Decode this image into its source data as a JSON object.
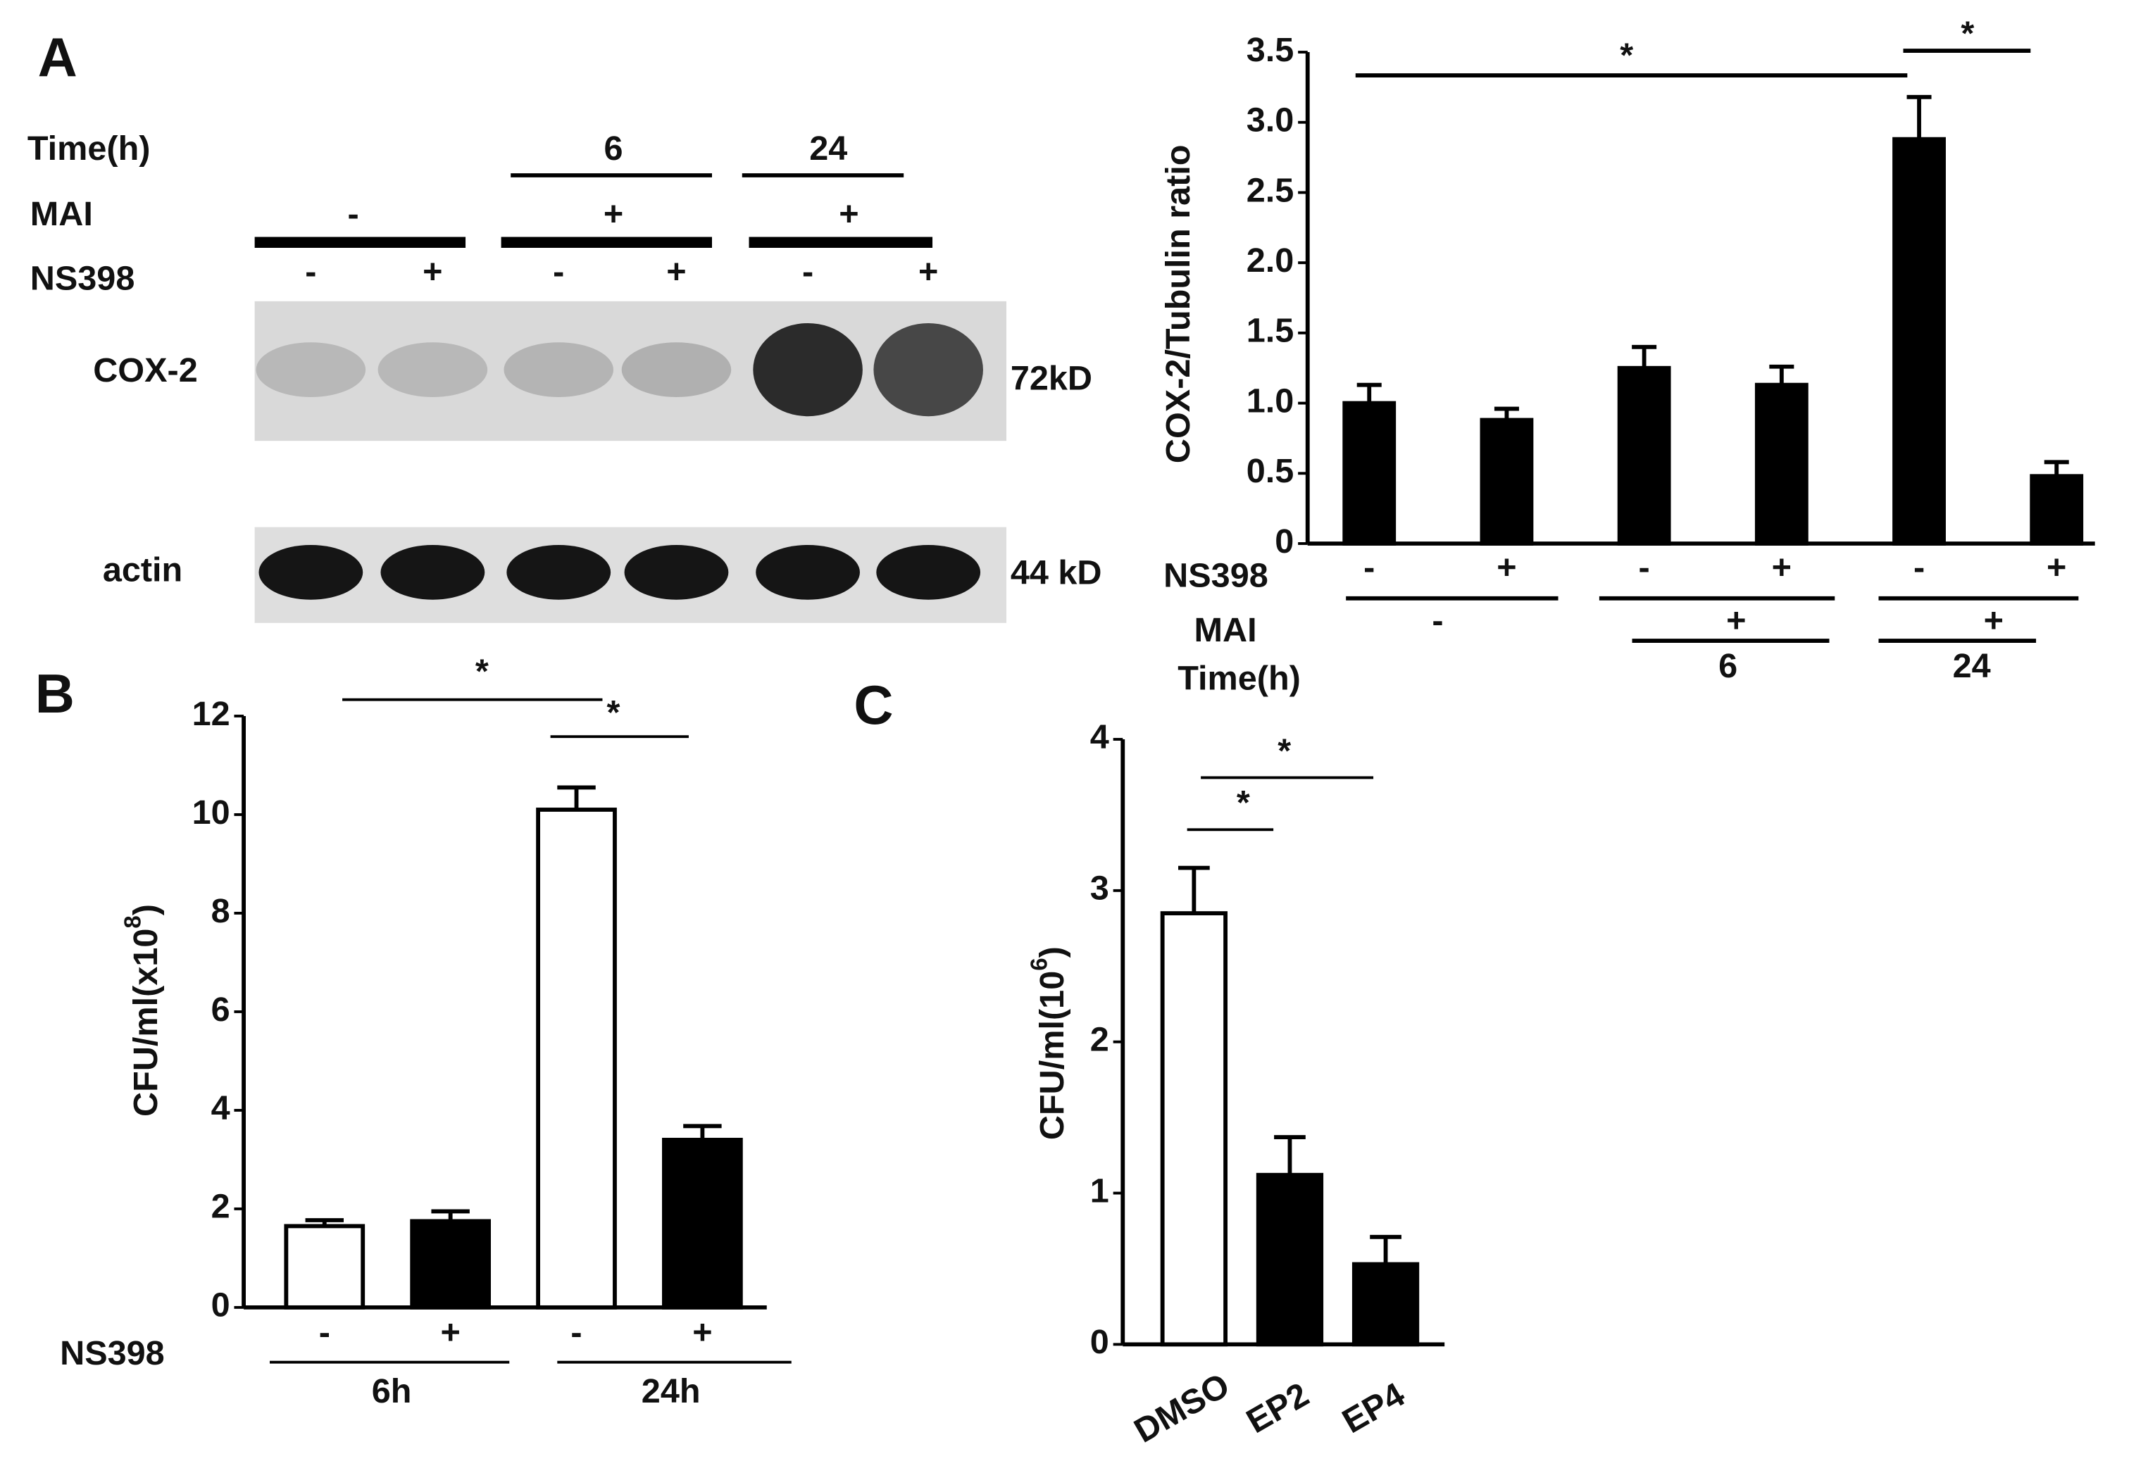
{
  "blot": {
    "panel": "A",
    "time_label": "Time(h)",
    "time": [
      "6",
      "24"
    ],
    "mai_label": "MAI",
    "mai": [
      "-",
      "+",
      "+"
    ],
    "ns398_label": "NS398",
    "ns398": [
      "-",
      "+",
      "-",
      "+",
      "-",
      "+"
    ],
    "bands": [
      {
        "label": "COX-2",
        "size": "72kD"
      },
      {
        "label": "actin",
        "size": "44 kD"
      }
    ]
  },
  "panel_labels": [
    "B",
    "C"
  ],
  "chart_data": [
    {
      "type": "bar",
      "ylabel": "COX-2/Tubulin ratio",
      "categories": [
        "-",
        "+",
        "-",
        "+",
        "-",
        "+"
      ],
      "values": [
        1.0,
        0.88,
        1.25,
        1.13,
        2.88,
        0.48
      ],
      "errors": [
        0.13,
        0.08,
        0.15,
        0.13,
        0.3,
        0.1
      ],
      "colors": [
        "#000000",
        "#000000",
        "#000000",
        "#000000",
        "#000000",
        "#000000"
      ],
      "ylim": [
        0,
        3.5
      ],
      "yticks": [
        0,
        0.5,
        {
          "value": 1,
          "label": "1.0"
        },
        1.5,
        {
          "value": 2,
          "label": "2.0"
        },
        2.5,
        {
          "value": 3,
          "label": "3.0"
        },
        3.5
      ],
      "xlabel": "NS398",
      "mai_label": "MAI",
      "mai": [
        "-",
        "+",
        "+"
      ],
      "time_label": "Time(h)",
      "time": [
        "6",
        "24"
      ],
      "significance": [
        "*",
        "*"
      ]
    },
    {
      "type": "bar",
      "ylabel": "CFU/ml(x10",
      "ylabel_sup": "8",
      "ylabel_close": ")",
      "categories": [
        "-",
        "+",
        "-",
        "+"
      ],
      "values": [
        1.65,
        1.75,
        10.1,
        3.4
      ],
      "errors": [
        0.12,
        0.2,
        0.45,
        0.28
      ],
      "colors": [
        "#ffffff",
        "#000000",
        "#ffffff",
        "#000000"
      ],
      "ylim": [
        0,
        12
      ],
      "yticks": [
        0,
        2,
        4,
        6,
        8,
        10,
        12
      ],
      "xlabel": "NS398",
      "groups": [
        "6h",
        "24h"
      ],
      "significance": [
        "*",
        "*"
      ]
    },
    {
      "type": "bar",
      "ylabel": "CFU/ml(10",
      "ylabel_sup": "6",
      "ylabel_close": ")",
      "categories": [
        "DMSO",
        "EP2",
        "EP4"
      ],
      "values": [
        2.85,
        1.12,
        0.53
      ],
      "errors": [
        0.3,
        0.25,
        0.18
      ],
      "colors": [
        "#ffffff",
        "#000000",
        "#000000"
      ],
      "ylim": [
        0,
        4
      ],
      "yticks": [
        0,
        1,
        2,
        3,
        4
      ],
      "significance": [
        "*",
        "*"
      ]
    }
  ]
}
